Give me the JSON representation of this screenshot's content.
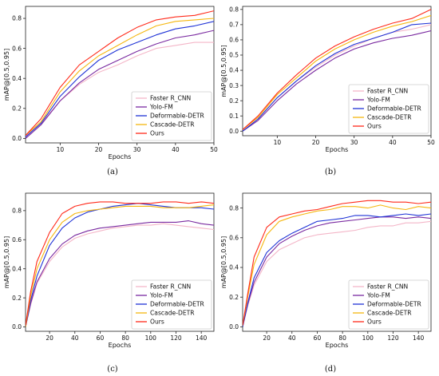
{
  "legend_labels": [
    "Faster R_CNN",
    "Yolo-FM",
    "Deformable-DETR",
    "Cascade-DETR",
    "Ours"
  ],
  "colors": [
    "#f4b6c8",
    "#7a2aa0",
    "#1f33d6",
    "#f5b70f",
    "#ff2a1a"
  ],
  "chart_data": [
    {
      "id": "a",
      "type": "line",
      "caption": "(a)",
      "title": "",
      "xlabel": "Epochs",
      "ylabel": "mAP@[0.5,0.95]",
      "xlim": [
        1,
        50
      ],
      "ylim": [
        -0.03,
        0.88
      ],
      "xticks": [
        10,
        20,
        30,
        40,
        50
      ],
      "yticks": [
        0.0,
        0.2,
        0.4,
        0.6,
        0.8
      ],
      "grid": false,
      "legend": "lower-right",
      "x": [
        1,
        5,
        10,
        15,
        20,
        25,
        30,
        35,
        40,
        45,
        50
      ],
      "series": [
        {
          "name": "Faster R_CNN",
          "values": [
            0.01,
            0.1,
            0.25,
            0.36,
            0.44,
            0.49,
            0.55,
            0.6,
            0.62,
            0.64,
            0.64
          ]
        },
        {
          "name": "Yolo-FM",
          "values": [
            0.0,
            0.09,
            0.25,
            0.37,
            0.46,
            0.52,
            0.58,
            0.63,
            0.67,
            0.69,
            0.72
          ]
        },
        {
          "name": "Deformable-DETR",
          "values": [
            0.01,
            0.1,
            0.28,
            0.41,
            0.52,
            0.59,
            0.64,
            0.69,
            0.73,
            0.75,
            0.78
          ]
        },
        {
          "name": "Cascade-DETR",
          "values": [
            0.02,
            0.11,
            0.31,
            0.45,
            0.55,
            0.62,
            0.69,
            0.75,
            0.78,
            0.79,
            0.8
          ]
        },
        {
          "name": "Ours",
          "values": [
            0.02,
            0.13,
            0.34,
            0.49,
            0.58,
            0.67,
            0.74,
            0.79,
            0.81,
            0.82,
            0.85
          ]
        }
      ]
    },
    {
      "id": "b",
      "type": "line",
      "caption": "(b)",
      "title": "",
      "xlabel": "Epochs",
      "ylabel": "mAP@[0.5,0.95]",
      "xlim": [
        1,
        50
      ],
      "ylim": [
        -0.03,
        0.82
      ],
      "xticks": [
        10,
        20,
        30,
        40,
        50
      ],
      "yticks": [
        0.0,
        0.1,
        0.2,
        0.3,
        0.4,
        0.5,
        0.6,
        0.7,
        0.8
      ],
      "grid": false,
      "legend": "lower-right",
      "x": [
        1,
        5,
        10,
        15,
        20,
        25,
        30,
        35,
        40,
        45,
        50
      ],
      "series": [
        {
          "name": "Faster R_CNN",
          "values": [
            0.0,
            0.08,
            0.22,
            0.33,
            0.42,
            0.5,
            0.56,
            0.61,
            0.65,
            0.67,
            0.7
          ]
        },
        {
          "name": "Yolo-FM",
          "values": [
            0.0,
            0.07,
            0.2,
            0.31,
            0.4,
            0.48,
            0.54,
            0.58,
            0.61,
            0.63,
            0.66
          ]
        },
        {
          "name": "Deformable-DETR",
          "values": [
            0.0,
            0.08,
            0.22,
            0.33,
            0.43,
            0.51,
            0.57,
            0.61,
            0.65,
            0.7,
            0.71
          ]
        },
        {
          "name": "Cascade-DETR",
          "values": [
            0.01,
            0.09,
            0.24,
            0.35,
            0.46,
            0.54,
            0.6,
            0.65,
            0.69,
            0.72,
            0.76
          ]
        },
        {
          "name": "Ours",
          "values": [
            0.01,
            0.1,
            0.25,
            0.37,
            0.48,
            0.56,
            0.62,
            0.67,
            0.71,
            0.74,
            0.8
          ]
        }
      ]
    },
    {
      "id": "c",
      "type": "line",
      "caption": "(c)",
      "title": "",
      "xlabel": "Epochs",
      "ylabel": "mAP@[0.5,0.95]",
      "xlim": [
        1,
        150
      ],
      "ylim": [
        -0.03,
        0.92
      ],
      "xticks": [
        20,
        40,
        60,
        80,
        100,
        120,
        140
      ],
      "yticks": [
        0.0,
        0.2,
        0.4,
        0.6,
        0.8
      ],
      "grid": false,
      "legend": "lower-right",
      "x": [
        1,
        5,
        10,
        20,
        30,
        40,
        50,
        60,
        70,
        80,
        90,
        100,
        110,
        120,
        130,
        140,
        150
      ],
      "series": [
        {
          "name": "Faster R_CNN",
          "values": [
            0.0,
            0.15,
            0.3,
            0.45,
            0.55,
            0.61,
            0.64,
            0.66,
            0.68,
            0.69,
            0.7,
            0.7,
            0.71,
            0.7,
            0.69,
            0.68,
            0.67
          ]
        },
        {
          "name": "Yolo-FM",
          "values": [
            0.0,
            0.16,
            0.31,
            0.47,
            0.57,
            0.63,
            0.66,
            0.68,
            0.69,
            0.7,
            0.71,
            0.72,
            0.72,
            0.72,
            0.73,
            0.71,
            0.7
          ]
        },
        {
          "name": "Deformable-DETR",
          "values": [
            0.0,
            0.18,
            0.35,
            0.56,
            0.68,
            0.75,
            0.79,
            0.81,
            0.83,
            0.84,
            0.85,
            0.84,
            0.83,
            0.82,
            0.82,
            0.82,
            0.81
          ]
        },
        {
          "name": "Cascade-DETR",
          "values": [
            0.0,
            0.21,
            0.4,
            0.6,
            0.72,
            0.78,
            0.8,
            0.81,
            0.82,
            0.83,
            0.83,
            0.83,
            0.82,
            0.82,
            0.82,
            0.83,
            0.84
          ]
        },
        {
          "name": "Ours",
          "values": [
            0.01,
            0.24,
            0.45,
            0.65,
            0.78,
            0.83,
            0.85,
            0.86,
            0.86,
            0.85,
            0.85,
            0.85,
            0.86,
            0.86,
            0.85,
            0.86,
            0.85
          ]
        }
      ]
    },
    {
      "id": "d",
      "type": "line",
      "caption": "(d)",
      "title": "",
      "xlabel": "Epochs",
      "ylabel": "mAP@[0.5,0.95]",
      "xlim": [
        1,
        150
      ],
      "ylim": [
        -0.03,
        0.9
      ],
      "xticks": [
        20,
        40,
        60,
        80,
        100,
        120,
        140
      ],
      "yticks": [
        0.0,
        0.2,
        0.4,
        0.6,
        0.8
      ],
      "grid": false,
      "legend": "lower-right",
      "x": [
        1,
        5,
        10,
        20,
        30,
        40,
        50,
        60,
        70,
        80,
        90,
        100,
        110,
        120,
        130,
        140,
        150
      ],
      "series": [
        {
          "name": "Faster R_CNN",
          "values": [
            0.0,
            0.14,
            0.28,
            0.44,
            0.52,
            0.56,
            0.6,
            0.62,
            0.63,
            0.64,
            0.65,
            0.67,
            0.68,
            0.68,
            0.7,
            0.7,
            0.71
          ]
        },
        {
          "name": "Yolo-FM",
          "values": [
            0.0,
            0.15,
            0.3,
            0.47,
            0.56,
            0.61,
            0.65,
            0.68,
            0.7,
            0.71,
            0.72,
            0.73,
            0.74,
            0.74,
            0.73,
            0.74,
            0.73
          ]
        },
        {
          "name": "Deformable-DETR",
          "values": [
            0.0,
            0.16,
            0.33,
            0.5,
            0.58,
            0.63,
            0.67,
            0.71,
            0.72,
            0.73,
            0.75,
            0.75,
            0.74,
            0.75,
            0.76,
            0.75,
            0.76
          ]
        },
        {
          "name": "Cascade-DETR",
          "values": [
            0.01,
            0.2,
            0.42,
            0.62,
            0.71,
            0.74,
            0.76,
            0.78,
            0.79,
            0.81,
            0.81,
            0.8,
            0.82,
            0.8,
            0.79,
            0.81,
            0.8
          ]
        },
        {
          "name": "Ours",
          "values": [
            0.01,
            0.22,
            0.47,
            0.67,
            0.74,
            0.76,
            0.78,
            0.79,
            0.81,
            0.83,
            0.84,
            0.85,
            0.85,
            0.84,
            0.84,
            0.83,
            0.84
          ]
        }
      ]
    }
  ]
}
